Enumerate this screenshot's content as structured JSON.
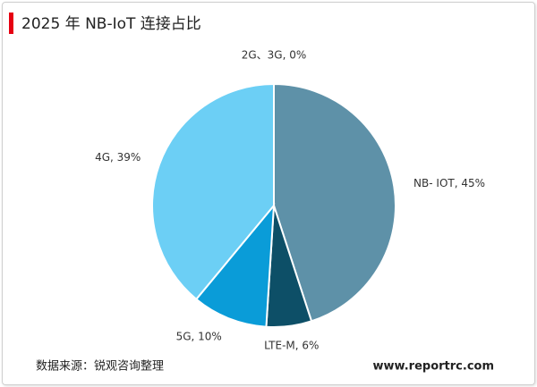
{
  "chart_data": {
    "type": "pie",
    "title": "2025 年 NB-IoT 连接占比",
    "values": [
      45,
      6,
      10,
      39,
      0
    ],
    "value_labels": [
      "NB- IOT, 45%",
      "LTE-M, 6%",
      "5G, 10%",
      "4G, 39%",
      "2G、3G, 0%"
    ],
    "colors": [
      "#5e91a8",
      "#0d4f67",
      "#0a9cd8",
      "#6ccff5",
      "#3b6e8f"
    ],
    "source": "数据来源：锐观咨询整理",
    "website": "www.reportrc.com"
  }
}
